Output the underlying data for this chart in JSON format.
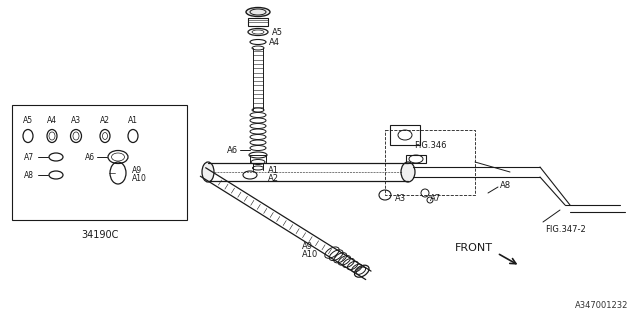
{
  "bg_color": "#ffffff",
  "line_color": "#1a1a1a",
  "title_br": "A347001232",
  "part_number_box": "34190C",
  "fig_346": "FIG.346",
  "fig_347": "FIG.347-2",
  "front_label": "FRONT"
}
